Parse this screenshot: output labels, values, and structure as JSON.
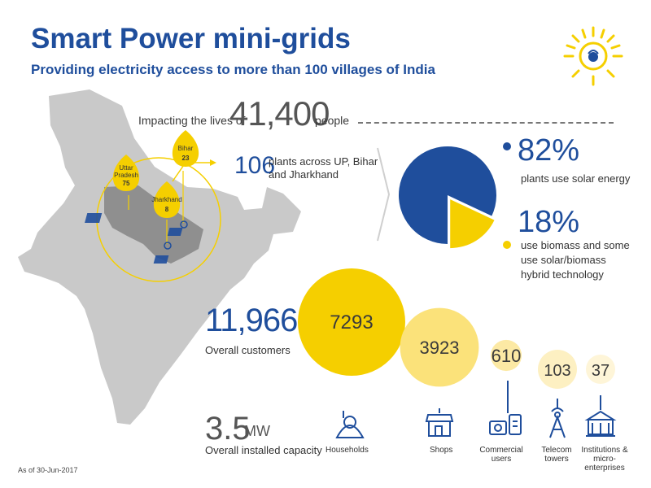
{
  "header": {
    "title": "Smart Power mini-grids",
    "subtitle": "Providing electricity access to more than 100 villages of India"
  },
  "impact": {
    "prefix": "Impacting the lives of",
    "number": "41,400",
    "suffix": "people"
  },
  "plants": {
    "number": "106",
    "text": "plants across UP, Bihar and Jharkhand"
  },
  "map": {
    "states": [
      {
        "name": "Uttar Pradesh",
        "count": "75"
      },
      {
        "name": "Bihar",
        "count": "23"
      },
      {
        "name": "Jharkhand",
        "count": "8"
      }
    ]
  },
  "energy": {
    "solar_pct": "82%",
    "solar_text": "plants use solar energy",
    "biomass_pct": "18%",
    "biomass_text": "use biomass and some use solar/biomass hybrid technology"
  },
  "customers": {
    "number": "11,966",
    "label": "Overall customers"
  },
  "capacity": {
    "number": "3.5",
    "unit": "MW",
    "label": "Overall installed capacity"
  },
  "footer": {
    "as_of": "As of 30-Jun-2017"
  },
  "colors": {
    "blue": "#1f4e9c",
    "yellow": "#f5cf00",
    "grey_map": "#c8c8c8"
  },
  "icons": [
    "logo-sun-icon",
    "household-icon",
    "shop-icon",
    "commercial-icon",
    "tower-icon",
    "institution-icon"
  ],
  "chart_data": [
    {
      "type": "pie",
      "categories": [
        "Solar",
        "Biomass / hybrid"
      ],
      "values": [
        82,
        18
      ],
      "colors": [
        "#1f4e9c",
        "#f5cf00"
      ]
    },
    {
      "type": "bubble",
      "categories": [
        "Households",
        "Shops",
        "Commercial users",
        "Telecom towers",
        "Institutions & micro-enterprises"
      ],
      "values": [
        7293,
        3923,
        610,
        103,
        37
      ]
    }
  ]
}
